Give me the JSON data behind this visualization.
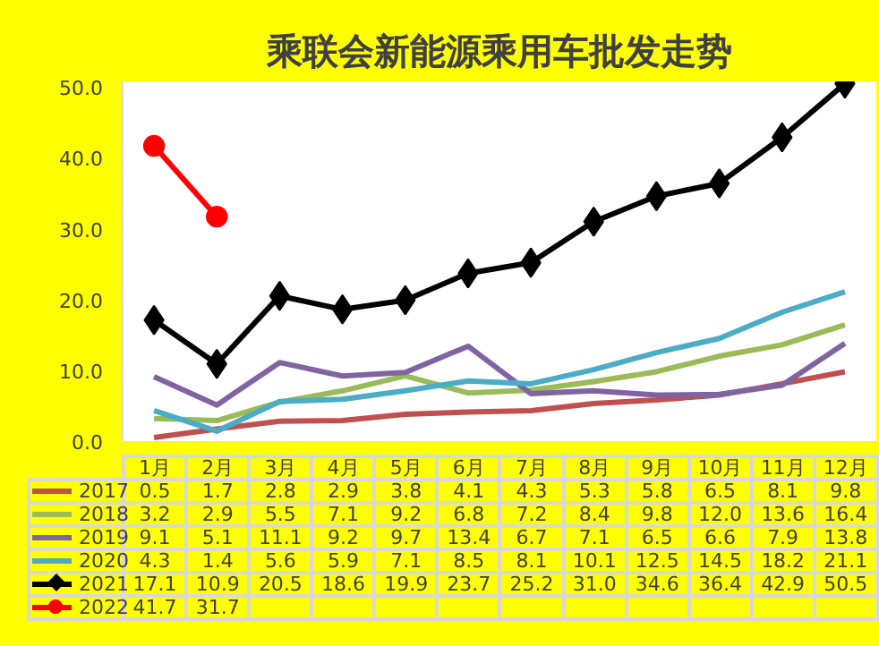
{
  "chart_data": {
    "type": "line",
    "title": "乘联会新能源乘用车批发走势",
    "categories": [
      "1月",
      "2月",
      "3月",
      "4月",
      "5月",
      "6月",
      "7月",
      "8月",
      "9月",
      "10月",
      "11月",
      "12月"
    ],
    "series": [
      {
        "name": "2017",
        "color": "#c0504d",
        "marker": "none",
        "values": [
          0.5,
          1.7,
          2.8,
          2.9,
          3.8,
          4.1,
          4.3,
          5.3,
          5.8,
          6.5,
          8.1,
          9.8
        ],
        "value_labels": [
          "0.5",
          "1.7",
          "2.8",
          "2.9",
          "3.8",
          "4.1",
          "4.3",
          "5.3",
          "5.8",
          "6.5",
          "8.1",
          "9.8"
        ]
      },
      {
        "name": "2018",
        "color": "#9bbb59",
        "marker": "none",
        "values": [
          3.2,
          2.9,
          5.5,
          7.1,
          9.2,
          6.8,
          7.2,
          8.4,
          9.8,
          12.0,
          13.6,
          16.4
        ],
        "value_labels": [
          "3.2",
          "2.9",
          "5.5",
          "7.1",
          "9.2",
          "6.8",
          "7.2",
          "8.4",
          "9.8",
          "12.0",
          "13.6",
          "16.4"
        ]
      },
      {
        "name": "2019",
        "color": "#8064a2",
        "marker": "none",
        "values": [
          9.1,
          5.1,
          11.1,
          9.2,
          9.7,
          13.4,
          6.7,
          7.1,
          6.5,
          6.6,
          7.9,
          13.8
        ],
        "value_labels": [
          "9.1",
          "5.1",
          "11.1",
          "9.2",
          "9.7",
          "13.4",
          "6.7",
          "7.1",
          "6.5",
          "6.6",
          "7.9",
          "13.8"
        ]
      },
      {
        "name": "2020",
        "color": "#4bacc6",
        "marker": "none",
        "values": [
          4.3,
          1.4,
          5.6,
          5.9,
          7.1,
          8.5,
          8.1,
          10.1,
          12.5,
          14.5,
          18.2,
          21.1
        ],
        "value_labels": [
          "4.3",
          "1.4",
          "5.6",
          "5.9",
          "7.1",
          "8.5",
          "8.1",
          "10.1",
          "12.5",
          "14.5",
          "18.2",
          "21.1"
        ]
      },
      {
        "name": "2021",
        "color": "#000000",
        "marker": "diamond",
        "values": [
          17.1,
          10.9,
          20.5,
          18.6,
          19.9,
          23.7,
          25.2,
          31.0,
          34.6,
          36.4,
          42.9,
          50.5
        ],
        "value_labels": [
          "17.1",
          "10.9",
          "20.5",
          "18.6",
          "19.9",
          "23.7",
          "25.2",
          "31.0",
          "34.6",
          "36.4",
          "42.9",
          "50.5"
        ]
      },
      {
        "name": "2022",
        "color": "#ff0000",
        "marker": "circle",
        "values": [
          41.7,
          31.7,
          null,
          null,
          null,
          null,
          null,
          null,
          null,
          null,
          null,
          null
        ],
        "value_labels": [
          "41.7",
          "31.7",
          null,
          null,
          null,
          null,
          null,
          null,
          null,
          null,
          null,
          null
        ]
      }
    ],
    "ylim": [
      0,
      50.8
    ],
    "yticks": [
      {
        "value": 0,
        "label": "0.0"
      },
      {
        "value": 10,
        "label": "10.0"
      },
      {
        "value": 20,
        "label": "20.0"
      },
      {
        "value": 30,
        "label": "30.0"
      },
      {
        "value": 40,
        "label": "40.0"
      },
      {
        "value": 50,
        "label": "50.0"
      }
    ],
    "legend": "bottom",
    "grid": false
  }
}
